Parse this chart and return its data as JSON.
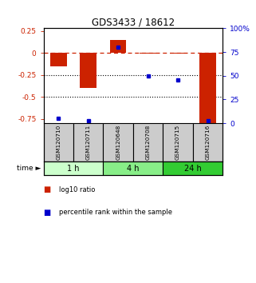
{
  "title": "GDS3433 / 18612",
  "samples": [
    "GSM120710",
    "GSM120711",
    "GSM120648",
    "GSM120708",
    "GSM120715",
    "GSM120716"
  ],
  "log10_ratio": [
    -0.15,
    -0.4,
    0.15,
    -0.01,
    -0.01,
    -0.8
  ],
  "percentile_rank": [
    5,
    3,
    80,
    50,
    46,
    3
  ],
  "bar_color": "#cc2200",
  "point_color": "#0000cc",
  "left_ylim": [
    -0.8,
    0.28
  ],
  "left_yticks": [
    0.25,
    0.0,
    -0.25,
    -0.5,
    -0.75
  ],
  "left_ytick_labels": [
    "0.25",
    "0",
    "-0.25",
    "-0.5",
    "-0.75"
  ],
  "right_ylim": [
    0,
    100
  ],
  "right_yticks": [
    100,
    75,
    50,
    25,
    0
  ],
  "right_ytick_labels": [
    "100%",
    "75",
    "50",
    "25",
    "0"
  ],
  "time_groups": [
    {
      "label": "1 h",
      "indices": [
        0,
        1
      ],
      "color": "#ccffcc"
    },
    {
      "label": "4 h",
      "indices": [
        2,
        3
      ],
      "color": "#88ee88"
    },
    {
      "label": "24 h",
      "indices": [
        4,
        5
      ],
      "color": "#33cc33"
    }
  ],
  "hline_color": "#cc2200",
  "hline_style": "--",
  "dotted_lines": [
    -0.25,
    -0.5
  ],
  "bg_color": "#ffffff",
  "sample_box_color": "#cccccc",
  "sample_box_edge": "#000000",
  "legend_red_label": "log10 ratio",
  "legend_blue_label": "percentile rank within the sample",
  "bar_width": 0.55,
  "xlim": [
    -0.5,
    5.5
  ]
}
